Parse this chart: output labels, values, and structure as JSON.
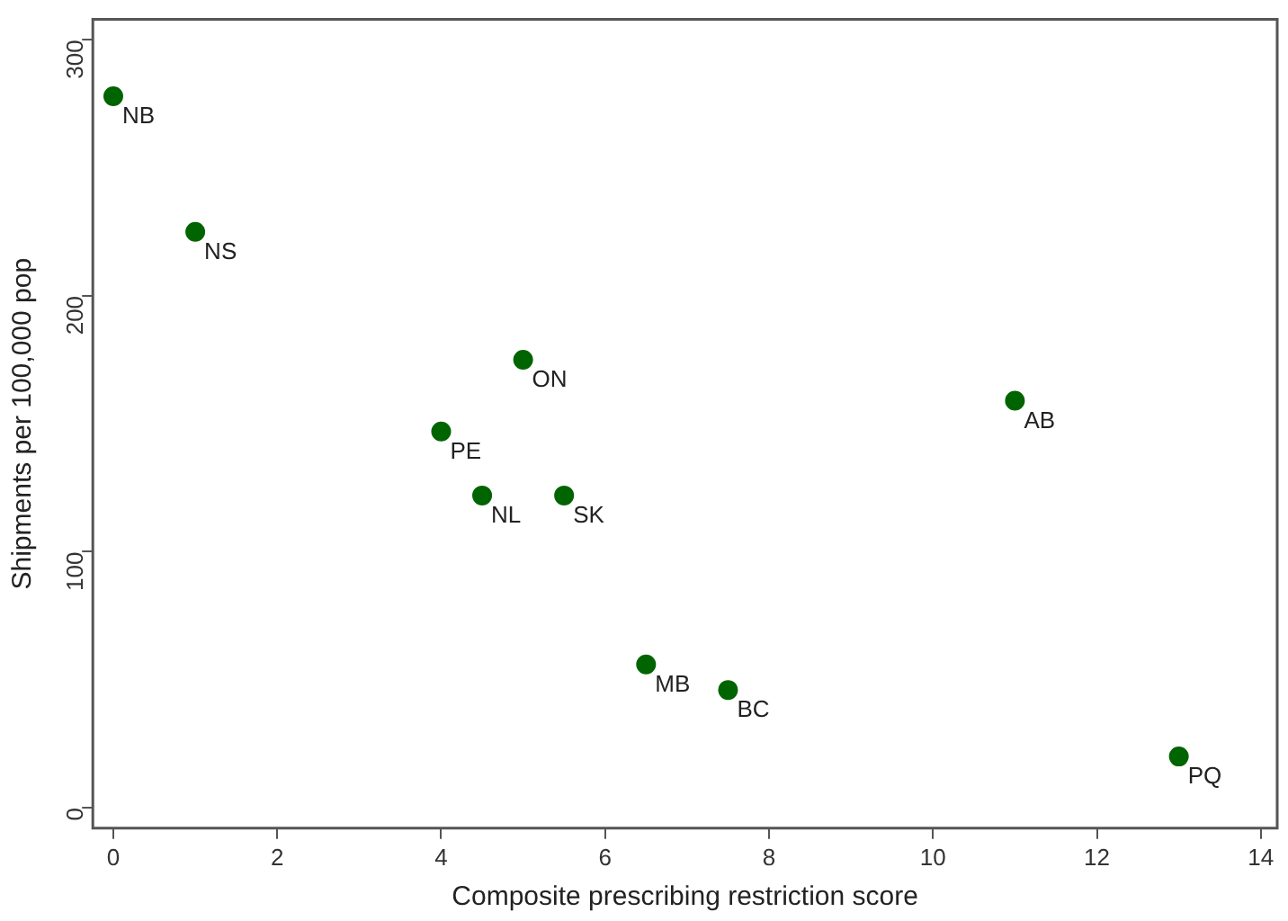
{
  "chart_data": {
    "type": "scatter",
    "xlabel": "Composite prescribing restriction score",
    "ylabel": "Shipments per 100,000 pop",
    "x": [
      0,
      1,
      5,
      4,
      4.5,
      5.5,
      11,
      6.5,
      7.5,
      13
    ],
    "series": [
      {
        "color": "#006400",
        "values": [
          278,
          225,
          175,
          147,
          122,
          122,
          159,
          56,
          46,
          20
        ]
      }
    ],
    "annotations": [
      {
        "text": "NB",
        "x": 0,
        "y": 278
      },
      {
        "text": "NS",
        "x": 1,
        "y": 225
      },
      {
        "text": "ON",
        "x": 5,
        "y": 175
      },
      {
        "text": "PE",
        "x": 4,
        "y": 147
      },
      {
        "text": "NL",
        "x": 4.5,
        "y": 122
      },
      {
        "text": "SK",
        "x": 5.5,
        "y": 122
      },
      {
        "text": "AB",
        "x": 11,
        "y": 159
      },
      {
        "text": "MB",
        "x": 6.5,
        "y": 56
      },
      {
        "text": "BC",
        "x": 7.5,
        "y": 46
      },
      {
        "text": "PQ",
        "x": 13,
        "y": 20
      }
    ],
    "xlim": [
      -0.25,
      14.2
    ],
    "xticks": [
      0,
      2,
      4,
      6,
      8,
      10,
      12,
      14
    ],
    "ylim": [
      -8,
      308
    ],
    "yticks": [
      0,
      100,
      200,
      300
    ],
    "grid": false,
    "legend": false,
    "marker": "circle"
  }
}
